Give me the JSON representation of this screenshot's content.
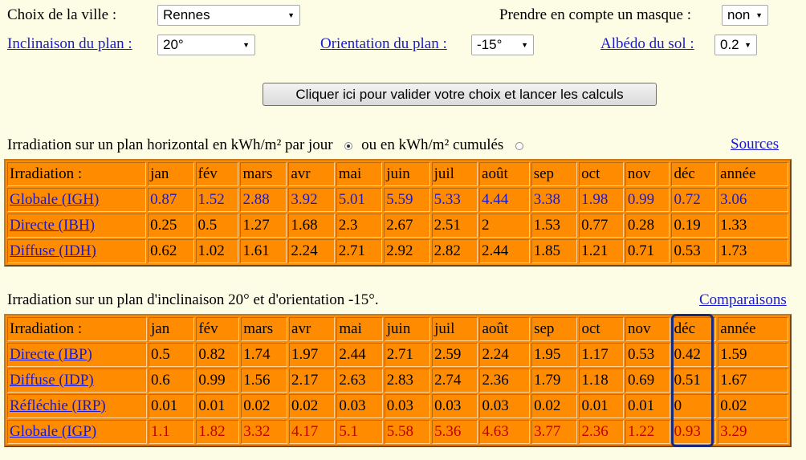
{
  "form": {
    "city_label": "Choix de la ville :",
    "city_value": "Rennes",
    "mask_label": "Prendre en compte un masque :",
    "mask_value": "non",
    "tilt_label": "Inclinaison du plan :",
    "tilt_value": "20°",
    "orientation_label": "Orientation du plan :",
    "orientation_value": "-15°",
    "albedo_label": "Albédo du sol :",
    "albedo_value": "0.2",
    "submit_label": "Cliquer ici pour valider votre choix et lancer les calculs"
  },
  "horizontal": {
    "caption": "Irradiation sur un plan horizontal en kWh/m² par jour",
    "option_cumul": "ou en kWh/m² cumulés",
    "sources_link": "Sources",
    "headers": [
      "Irradiation :",
      "jan",
      "fév",
      "mars",
      "avr",
      "mai",
      "juin",
      "juil",
      "août",
      "sep",
      "oct",
      "nov",
      "déc",
      "année"
    ],
    "rows": [
      {
        "label": "Globale (IGH)",
        "values": [
          "0.87",
          "1.52",
          "2.88",
          "3.92",
          "5.01",
          "5.59",
          "5.33",
          "4.44",
          "3.38",
          "1.98",
          "0.99",
          "0.72",
          "3.06"
        ],
        "color": "blue"
      },
      {
        "label": "Directe (IBH)",
        "values": [
          "0.25",
          "0.5",
          "1.27",
          "1.68",
          "2.3",
          "2.67",
          "2.51",
          "2",
          "1.53",
          "0.77",
          "0.28",
          "0.19",
          "1.33"
        ],
        "color": "black"
      },
      {
        "label": "Diffuse (IDH)",
        "values": [
          "0.62",
          "1.02",
          "1.61",
          "2.24",
          "2.71",
          "2.92",
          "2.82",
          "2.44",
          "1.85",
          "1.21",
          "0.71",
          "0.53",
          "1.73"
        ],
        "color": "black"
      }
    ]
  },
  "inclined": {
    "caption": "Irradiation sur un plan d'inclinaison 20° et d'orientation -15°.",
    "comparisons_link": "Comparaisons",
    "headers": [
      "Irradiation :",
      "jan",
      "fév",
      "mars",
      "avr",
      "mai",
      "juin",
      "juil",
      "août",
      "sep",
      "oct",
      "nov",
      "déc",
      "année"
    ],
    "rows": [
      {
        "label": "Directe (IBP)",
        "values": [
          "0.5",
          "0.82",
          "1.74",
          "1.97",
          "2.44",
          "2.71",
          "2.59",
          "2.24",
          "1.95",
          "1.17",
          "0.53",
          "0.42",
          "1.59"
        ],
        "color": "black"
      },
      {
        "label": "Diffuse (IDP)",
        "values": [
          "0.6",
          "0.99",
          "1.56",
          "2.17",
          "2.63",
          "2.83",
          "2.74",
          "2.36",
          "1.79",
          "1.18",
          "0.69",
          "0.51",
          "1.67"
        ],
        "color": "black"
      },
      {
        "label": "Réfléchie (IRP)",
        "values": [
          "0.01",
          "0.01",
          "0.02",
          "0.02",
          "0.03",
          "0.03",
          "0.03",
          "0.03",
          "0.02",
          "0.01",
          "0.01",
          "0",
          "0.02"
        ],
        "color": "black"
      },
      {
        "label": "Globale (IGP)",
        "values": [
          "1.1",
          "1.82",
          "3.32",
          "4.17",
          "5.1",
          "5.58",
          "5.36",
          "4.63",
          "3.77",
          "2.36",
          "1.22",
          "0.93",
          "3.29"
        ],
        "color": "red"
      }
    ]
  }
}
